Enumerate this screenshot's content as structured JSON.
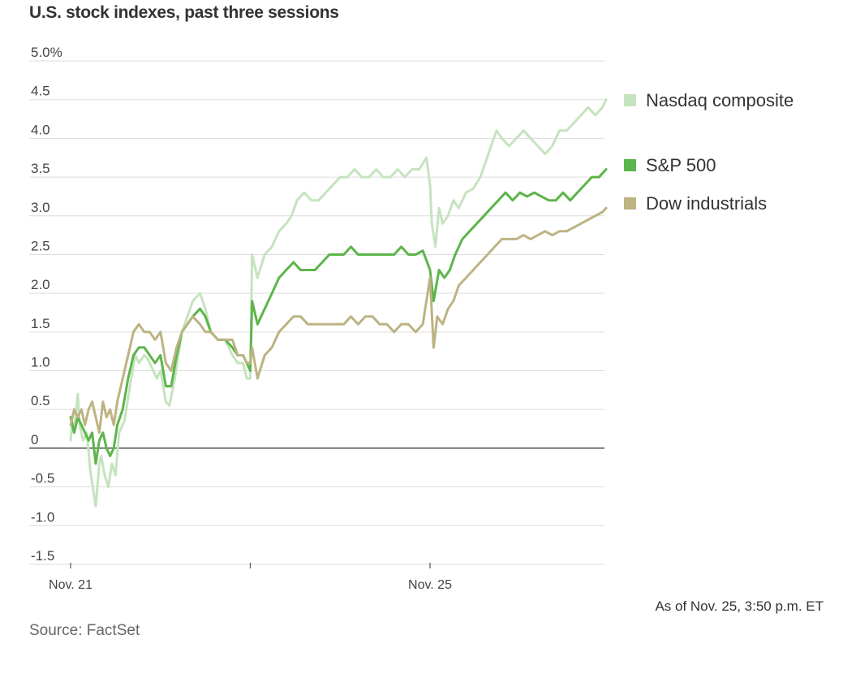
{
  "chart_data": {
    "type": "line",
    "title": "U.S. stock indexes, past three sessions",
    "ylim": [
      -1.5,
      5.0
    ],
    "y_ticks": [
      "5.0%",
      "4.5",
      "4.0",
      "3.5",
      "3.0",
      "2.5",
      "2.0",
      "1.5",
      "1.0",
      "0.5",
      "0",
      "-0.5",
      "-1.0",
      "-1.5"
    ],
    "y_tick_values": [
      5.0,
      4.5,
      4.0,
      3.5,
      3.0,
      2.5,
      2.0,
      1.5,
      1.0,
      0.5,
      0,
      -0.5,
      -1.0,
      -1.5
    ],
    "xlim": [
      0,
      3
    ],
    "x_ticks": [
      {
        "x": 0,
        "label": "Nov. 21"
      },
      {
        "x": 1,
        "label": ""
      },
      {
        "x": 2,
        "label": "Nov. 25"
      }
    ],
    "grid": true,
    "legend_position": "right",
    "series": [
      {
        "name": "Nasdaq composite",
        "color": "#c6e3bf",
        "points": [
          [
            0,
            0.1
          ],
          [
            0.01,
            0.35
          ],
          [
            0.02,
            0.25
          ],
          [
            0.04,
            0.7
          ],
          [
            0.05,
            0.3
          ],
          [
            0.07,
            0.1
          ],
          [
            0.09,
            0.2
          ],
          [
            0.11,
            -0.3
          ],
          [
            0.13,
            -0.6
          ],
          [
            0.14,
            -0.75
          ],
          [
            0.16,
            -0.2
          ],
          [
            0.17,
            -0.1
          ],
          [
            0.19,
            -0.35
          ],
          [
            0.21,
            -0.5
          ],
          [
            0.23,
            -0.2
          ],
          [
            0.25,
            -0.35
          ],
          [
            0.27,
            0.2
          ],
          [
            0.3,
            0.35
          ],
          [
            0.33,
            0.8
          ],
          [
            0.36,
            1.2
          ],
          [
            0.38,
            1.1
          ],
          [
            0.41,
            1.2
          ],
          [
            0.43,
            1.15
          ],
          [
            0.46,
            1.0
          ],
          [
            0.48,
            0.9
          ],
          [
            0.5,
            1.0
          ],
          [
            0.53,
            0.6
          ],
          [
            0.55,
            0.55
          ],
          [
            0.58,
            0.9
          ],
          [
            0.62,
            1.5
          ],
          [
            0.65,
            1.7
          ],
          [
            0.68,
            1.9
          ],
          [
            0.72,
            2.0
          ],
          [
            0.75,
            1.8
          ],
          [
            0.78,
            1.5
          ],
          [
            0.82,
            1.4
          ],
          [
            0.86,
            1.4
          ],
          [
            0.9,
            1.2
          ],
          [
            0.93,
            1.1
          ],
          [
            0.96,
            1.1
          ],
          [
            0.98,
            0.9
          ],
          [
            1.0,
            0.9
          ],
          [
            1.01,
            2.5
          ],
          [
            1.04,
            2.2
          ],
          [
            1.08,
            2.5
          ],
          [
            1.12,
            2.6
          ],
          [
            1.16,
            2.8
          ],
          [
            1.2,
            2.9
          ],
          [
            1.23,
            3.0
          ],
          [
            1.26,
            3.2
          ],
          [
            1.3,
            3.3
          ],
          [
            1.34,
            3.2
          ],
          [
            1.38,
            3.2
          ],
          [
            1.42,
            3.3
          ],
          [
            1.46,
            3.4
          ],
          [
            1.5,
            3.5
          ],
          [
            1.54,
            3.5
          ],
          [
            1.58,
            3.6
          ],
          [
            1.62,
            3.5
          ],
          [
            1.66,
            3.5
          ],
          [
            1.7,
            3.6
          ],
          [
            1.74,
            3.5
          ],
          [
            1.78,
            3.5
          ],
          [
            1.82,
            3.6
          ],
          [
            1.86,
            3.5
          ],
          [
            1.9,
            3.6
          ],
          [
            1.94,
            3.6
          ],
          [
            1.98,
            3.75
          ],
          [
            2.0,
            3.4
          ],
          [
            2.01,
            2.9
          ],
          [
            2.03,
            2.6
          ],
          [
            2.05,
            3.1
          ],
          [
            2.07,
            2.9
          ],
          [
            2.1,
            3.0
          ],
          [
            2.13,
            3.2
          ],
          [
            2.16,
            3.1
          ],
          [
            2.2,
            3.3
          ],
          [
            2.24,
            3.35
          ],
          [
            2.28,
            3.5
          ],
          [
            2.31,
            3.7
          ],
          [
            2.34,
            3.9
          ],
          [
            2.37,
            4.1
          ],
          [
            2.4,
            4.0
          ],
          [
            2.44,
            3.9
          ],
          [
            2.48,
            4.0
          ],
          [
            2.52,
            4.1
          ],
          [
            2.56,
            4.0
          ],
          [
            2.6,
            3.9
          ],
          [
            2.64,
            3.8
          ],
          [
            2.68,
            3.9
          ],
          [
            2.72,
            4.1
          ],
          [
            2.76,
            4.1
          ],
          [
            2.8,
            4.2
          ],
          [
            2.84,
            4.3
          ],
          [
            2.88,
            4.4
          ],
          [
            2.92,
            4.3
          ],
          [
            2.96,
            4.4
          ],
          [
            2.98,
            4.5
          ]
        ]
      },
      {
        "name": "S&P 500",
        "color": "#5cb54a",
        "points": [
          [
            0,
            0.4
          ],
          [
            0.01,
            0.3
          ],
          [
            0.02,
            0.2
          ],
          [
            0.04,
            0.4
          ],
          [
            0.06,
            0.3
          ],
          [
            0.08,
            0.2
          ],
          [
            0.1,
            0.1
          ],
          [
            0.12,
            0.2
          ],
          [
            0.14,
            -0.2
          ],
          [
            0.16,
            0.1
          ],
          [
            0.18,
            0.2
          ],
          [
            0.2,
            0.0
          ],
          [
            0.22,
            -0.1
          ],
          [
            0.24,
            0.0
          ],
          [
            0.26,
            0.3
          ],
          [
            0.29,
            0.5
          ],
          [
            0.32,
            0.9
          ],
          [
            0.35,
            1.2
          ],
          [
            0.38,
            1.3
          ],
          [
            0.41,
            1.3
          ],
          [
            0.44,
            1.2
          ],
          [
            0.47,
            1.1
          ],
          [
            0.5,
            1.2
          ],
          [
            0.53,
            0.8
          ],
          [
            0.56,
            0.8
          ],
          [
            0.59,
            1.2
          ],
          [
            0.62,
            1.5
          ],
          [
            0.65,
            1.6
          ],
          [
            0.68,
            1.7
          ],
          [
            0.72,
            1.8
          ],
          [
            0.75,
            1.7
          ],
          [
            0.78,
            1.5
          ],
          [
            0.82,
            1.4
          ],
          [
            0.86,
            1.4
          ],
          [
            0.9,
            1.3
          ],
          [
            0.93,
            1.2
          ],
          [
            0.96,
            1.2
          ],
          [
            0.98,
            1.1
          ],
          [
            1.0,
            1.0
          ],
          [
            1.01,
            1.9
          ],
          [
            1.04,
            1.6
          ],
          [
            1.08,
            1.8
          ],
          [
            1.12,
            2.0
          ],
          [
            1.16,
            2.2
          ],
          [
            1.2,
            2.3
          ],
          [
            1.24,
            2.4
          ],
          [
            1.28,
            2.3
          ],
          [
            1.32,
            2.3
          ],
          [
            1.36,
            2.3
          ],
          [
            1.4,
            2.4
          ],
          [
            1.44,
            2.5
          ],
          [
            1.48,
            2.5
          ],
          [
            1.52,
            2.5
          ],
          [
            1.56,
            2.6
          ],
          [
            1.6,
            2.5
          ],
          [
            1.64,
            2.5
          ],
          [
            1.68,
            2.5
          ],
          [
            1.72,
            2.5
          ],
          [
            1.76,
            2.5
          ],
          [
            1.8,
            2.5
          ],
          [
            1.84,
            2.6
          ],
          [
            1.88,
            2.5
          ],
          [
            1.92,
            2.5
          ],
          [
            1.96,
            2.55
          ],
          [
            2.0,
            2.3
          ],
          [
            2.02,
            1.9
          ],
          [
            2.05,
            2.3
          ],
          [
            2.08,
            2.2
          ],
          [
            2.11,
            2.3
          ],
          [
            2.14,
            2.5
          ],
          [
            2.18,
            2.7
          ],
          [
            2.22,
            2.8
          ],
          [
            2.26,
            2.9
          ],
          [
            2.3,
            3.0
          ],
          [
            2.34,
            3.1
          ],
          [
            2.38,
            3.2
          ],
          [
            2.42,
            3.3
          ],
          [
            2.46,
            3.2
          ],
          [
            2.5,
            3.3
          ],
          [
            2.54,
            3.25
          ],
          [
            2.58,
            3.3
          ],
          [
            2.62,
            3.25
          ],
          [
            2.66,
            3.2
          ],
          [
            2.7,
            3.2
          ],
          [
            2.74,
            3.3
          ],
          [
            2.78,
            3.2
          ],
          [
            2.82,
            3.3
          ],
          [
            2.86,
            3.4
          ],
          [
            2.9,
            3.5
          ],
          [
            2.94,
            3.5
          ],
          [
            2.98,
            3.6
          ]
        ]
      },
      {
        "name": "Dow industrials",
        "color": "#bdb383",
        "points": [
          [
            0,
            0.3
          ],
          [
            0.02,
            0.5
          ],
          [
            0.04,
            0.4
          ],
          [
            0.06,
            0.5
          ],
          [
            0.08,
            0.3
          ],
          [
            0.1,
            0.5
          ],
          [
            0.12,
            0.6
          ],
          [
            0.14,
            0.4
          ],
          [
            0.16,
            0.2
          ],
          [
            0.18,
            0.6
          ],
          [
            0.2,
            0.4
          ],
          [
            0.22,
            0.5
          ],
          [
            0.24,
            0.3
          ],
          [
            0.26,
            0.6
          ],
          [
            0.29,
            0.9
          ],
          [
            0.32,
            1.2
          ],
          [
            0.35,
            1.5
          ],
          [
            0.38,
            1.6
          ],
          [
            0.41,
            1.5
          ],
          [
            0.44,
            1.5
          ],
          [
            0.47,
            1.4
          ],
          [
            0.5,
            1.5
          ],
          [
            0.53,
            1.1
          ],
          [
            0.56,
            1.0
          ],
          [
            0.59,
            1.3
          ],
          [
            0.62,
            1.5
          ],
          [
            0.65,
            1.6
          ],
          [
            0.68,
            1.7
          ],
          [
            0.72,
            1.6
          ],
          [
            0.75,
            1.5
          ],
          [
            0.78,
            1.5
          ],
          [
            0.82,
            1.4
          ],
          [
            0.86,
            1.4
          ],
          [
            0.9,
            1.4
          ],
          [
            0.93,
            1.2
          ],
          [
            0.96,
            1.2
          ],
          [
            0.98,
            1.1
          ],
          [
            1.0,
            1.1
          ],
          [
            1.01,
            1.3
          ],
          [
            1.04,
            0.9
          ],
          [
            1.08,
            1.2
          ],
          [
            1.12,
            1.3
          ],
          [
            1.16,
            1.5
          ],
          [
            1.2,
            1.6
          ],
          [
            1.24,
            1.7
          ],
          [
            1.28,
            1.7
          ],
          [
            1.32,
            1.6
          ],
          [
            1.36,
            1.6
          ],
          [
            1.4,
            1.6
          ],
          [
            1.44,
            1.6
          ],
          [
            1.48,
            1.6
          ],
          [
            1.52,
            1.6
          ],
          [
            1.56,
            1.7
          ],
          [
            1.6,
            1.6
          ],
          [
            1.64,
            1.7
          ],
          [
            1.68,
            1.7
          ],
          [
            1.72,
            1.6
          ],
          [
            1.76,
            1.6
          ],
          [
            1.8,
            1.5
          ],
          [
            1.84,
            1.6
          ],
          [
            1.88,
            1.6
          ],
          [
            1.92,
            1.5
          ],
          [
            1.96,
            1.6
          ],
          [
            2.0,
            2.2
          ],
          [
            2.02,
            1.3
          ],
          [
            2.04,
            1.7
          ],
          [
            2.07,
            1.6
          ],
          [
            2.1,
            1.8
          ],
          [
            2.13,
            1.9
          ],
          [
            2.16,
            2.1
          ],
          [
            2.2,
            2.2
          ],
          [
            2.24,
            2.3
          ],
          [
            2.28,
            2.4
          ],
          [
            2.32,
            2.5
          ],
          [
            2.36,
            2.6
          ],
          [
            2.4,
            2.7
          ],
          [
            2.44,
            2.7
          ],
          [
            2.48,
            2.7
          ],
          [
            2.52,
            2.75
          ],
          [
            2.56,
            2.7
          ],
          [
            2.6,
            2.75
          ],
          [
            2.64,
            2.8
          ],
          [
            2.68,
            2.75
          ],
          [
            2.72,
            2.8
          ],
          [
            2.76,
            2.8
          ],
          [
            2.8,
            2.85
          ],
          [
            2.84,
            2.9
          ],
          [
            2.88,
            2.95
          ],
          [
            2.92,
            3.0
          ],
          [
            2.96,
            3.05
          ],
          [
            2.98,
            3.1
          ]
        ]
      }
    ]
  },
  "note": "As of Nov. 25, 3:50 p.m. ET",
  "source": "Source: FactSet"
}
